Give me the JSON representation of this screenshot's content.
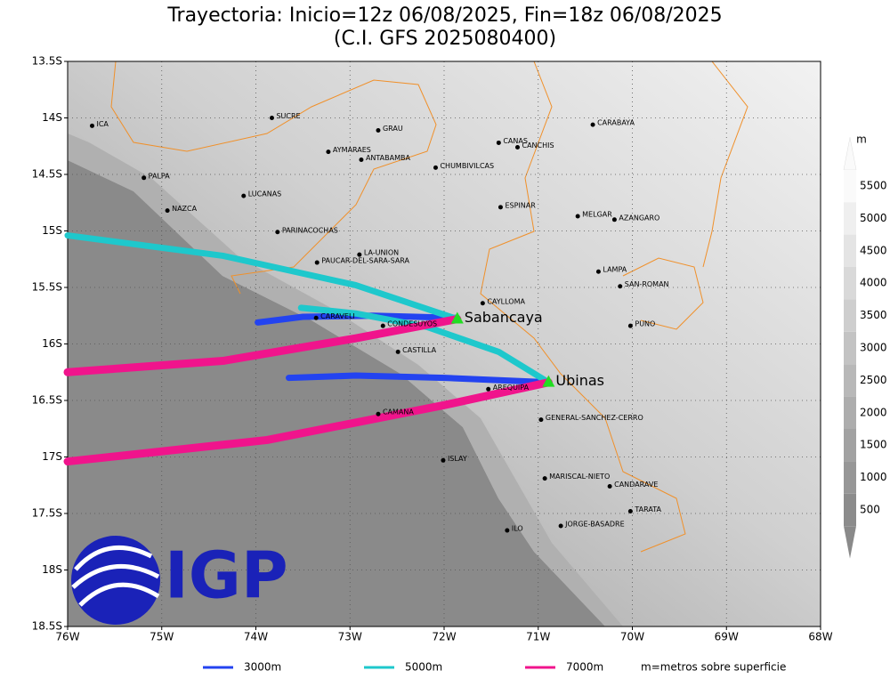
{
  "chart_data": {
    "type": "trajectory-map",
    "title": "Trayectoria: Inicio=12z 06/08/2025, Fin=18z 06/08/2025",
    "subtitle": "(C.I. GFS 2025080400)",
    "xlim": [
      -76,
      -68
    ],
    "ylim": [
      -18.5,
      -13.5
    ],
    "xticks": [
      {
        "value": -76,
        "label": "76W"
      },
      {
        "value": -75,
        "label": "75W"
      },
      {
        "value": -74,
        "label": "74W"
      },
      {
        "value": -73,
        "label": "73W"
      },
      {
        "value": -72,
        "label": "72W"
      },
      {
        "value": -71,
        "label": "71W"
      },
      {
        "value": -70,
        "label": "70W"
      },
      {
        "value": -69,
        "label": "69W"
      },
      {
        "value": -68,
        "label": "68W"
      }
    ],
    "yticks": [
      {
        "value": -13.5,
        "label": "13.5S"
      },
      {
        "value": -14,
        "label": "14S"
      },
      {
        "value": -14.5,
        "label": "14.5S"
      },
      {
        "value": -15,
        "label": "15S"
      },
      {
        "value": -15.5,
        "label": "15.5S"
      },
      {
        "value": -16,
        "label": "16S"
      },
      {
        "value": -16.5,
        "label": "16.5S"
      },
      {
        "value": -17,
        "label": "17S"
      },
      {
        "value": -17.5,
        "label": "17.5S"
      },
      {
        "value": -18,
        "label": "18S"
      },
      {
        "value": -18.5,
        "label": "18.5S"
      }
    ],
    "grid": true,
    "series": [
      {
        "name": "3000m",
        "color": "#2343f0",
        "paths": [
          {
            "x": [
              -71.86,
              -72.75,
              -73.5,
              -73.98
            ],
            "y": [
              -15.77,
              -15.75,
              -15.76,
              -15.81
            ]
          },
          {
            "x": [
              -70.89,
              -71.99,
              -72.94,
              -73.65
            ],
            "y": [
              -16.34,
              -16.3,
              -16.28,
              -16.3
            ]
          }
        ]
      },
      {
        "name": "5000m",
        "color": "#1ec8cc",
        "paths": [
          {
            "x": [
              -71.86,
              -72.94,
              -74.35,
              -76.0
            ],
            "y": [
              -15.78,
              -15.48,
              -15.22,
              -15.04
            ]
          },
          {
            "x": [
              -70.89,
              -71.42,
              -72.18,
              -72.94,
              -73.52
            ],
            "y": [
              -16.34,
              -16.07,
              -15.85,
              -15.73,
              -15.68
            ]
          }
        ]
      },
      {
        "name": "7000m",
        "color": "#f0148c",
        "paths": [
          {
            "x": [
              -71.86,
              -72.94,
              -74.35,
              -76.0
            ],
            "y": [
              -15.78,
              -15.95,
              -16.15,
              -16.25
            ]
          },
          {
            "x": [
              -70.89,
              -71.99,
              -73.88,
              -76.0
            ],
            "y": [
              -16.34,
              -16.54,
              -16.85,
              -17.04
            ]
          }
        ]
      }
    ],
    "volcanoes": [
      {
        "name": "Sabancaya",
        "x": -71.86,
        "y": -15.78
      },
      {
        "name": "Ubinas",
        "x": -70.89,
        "y": -16.34
      }
    ],
    "places": [
      {
        "name": "ICA",
        "x": -75.74,
        "y": -14.07
      },
      {
        "name": "SUCRE",
        "x": -73.83,
        "y": -14.0
      },
      {
        "name": "GRAU",
        "x": -72.7,
        "y": -14.11
      },
      {
        "name": "AYMARAES",
        "x": -73.23,
        "y": -14.3
      },
      {
        "name": "ANTABAMBA",
        "x": -72.88,
        "y": -14.37
      },
      {
        "name": "CANAS",
        "x": -71.42,
        "y": -14.22
      },
      {
        "name": "CANCHIS",
        "x": -71.22,
        "y": -14.26
      },
      {
        "name": "CARABAYA",
        "x": -70.42,
        "y": -14.06
      },
      {
        "name": "CHUMBIVILCAS",
        "x": -72.09,
        "y": -14.44
      },
      {
        "name": "PALPA",
        "x": -75.19,
        "y": -14.53
      },
      {
        "name": "LUCANAS",
        "x": -74.13,
        "y": -14.69
      },
      {
        "name": "NAZCA",
        "x": -74.94,
        "y": -14.82
      },
      {
        "name": "ESPINAR",
        "x": -71.4,
        "y": -14.79
      },
      {
        "name": "MELGAR",
        "x": -70.58,
        "y": -14.87
      },
      {
        "name": "AZANGARO",
        "x": -70.19,
        "y": -14.9
      },
      {
        "name": "PARINACOCHAS",
        "x": -73.77,
        "y": -15.01
      },
      {
        "name": "LA-UNION",
        "x": -72.9,
        "y": -15.21
      },
      {
        "name": "PAUCAR-DEL-SARA-SARA",
        "x": -73.35,
        "y": -15.28
      },
      {
        "name": "LAMPA",
        "x": -70.36,
        "y": -15.36
      },
      {
        "name": "SAN-ROMAN",
        "x": -70.13,
        "y": -15.49
      },
      {
        "name": "CAYLLOMA",
        "x": -71.59,
        "y": -15.64
      },
      {
        "name": "CARAVELI",
        "x": -73.36,
        "y": -15.77
      },
      {
        "name": "CONDESUYOS",
        "x": -72.65,
        "y": -15.84
      },
      {
        "name": "PUNO",
        "x": -70.02,
        "y": -15.84
      },
      {
        "name": "CASTILLA",
        "x": -72.49,
        "y": -16.07
      },
      {
        "name": "AREQUIPA",
        "x": -71.53,
        "y": -16.4
      },
      {
        "name": "GENERAL-SANCHEZ-CERRO",
        "x": -70.97,
        "y": -16.67
      },
      {
        "name": "CAMANA",
        "x": -72.7,
        "y": -16.62
      },
      {
        "name": "ISLAY",
        "x": -72.01,
        "y": -17.03
      },
      {
        "name": "MARISCAL-NIETO",
        "x": -70.93,
        "y": -17.19
      },
      {
        "name": "CANDARAVE",
        "x": -70.24,
        "y": -17.26
      },
      {
        "name": "TARATA",
        "x": -70.02,
        "y": -17.48
      },
      {
        "name": "ILO",
        "x": -71.33,
        "y": -17.65
      },
      {
        "name": "JORGE-BASADRE",
        "x": -70.76,
        "y": -17.61
      }
    ],
    "colorbar": {
      "unit": "m",
      "ticks": [
        500,
        1000,
        1500,
        2000,
        2500,
        3000,
        3500,
        4000,
        4500,
        5000,
        5500
      ]
    },
    "note": "m=metros sobre superficie",
    "logo_text": "IGP"
  }
}
